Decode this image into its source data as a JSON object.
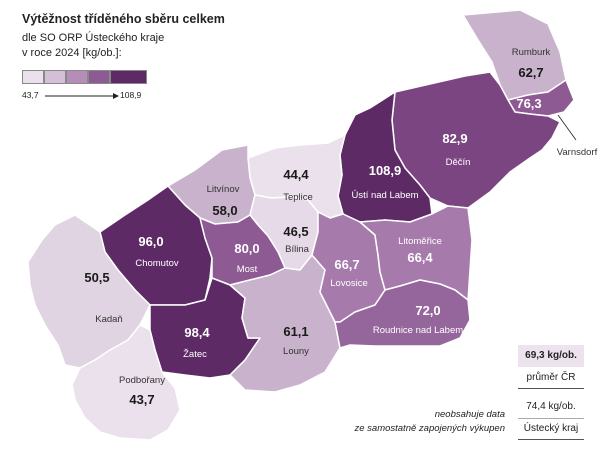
{
  "header": {
    "title": "Výtěžnost tříděného sběru celkem",
    "subtitle_1": "dle SO ORP Ústeckého kraje",
    "subtitle_2": "v roce 2024 [kg/ob.]:"
  },
  "legend": {
    "min": "43,7",
    "max": "108,9",
    "colors": [
      "#ebe1ec",
      "#d4bfd6",
      "#b58eb8",
      "#8e5a94",
      "#5e2a66"
    ]
  },
  "regions": [
    {
      "id": "rumburk",
      "name": "Rumburk",
      "value": "62,7",
      "color": "#c9b2cc"
    },
    {
      "id": "varnsdorf",
      "name": "Varnsdorf",
      "value": "76,3",
      "color": "#8e5a94"
    },
    {
      "id": "decin",
      "name": "Děčín",
      "value": "82,9",
      "color": "#7b4582"
    },
    {
      "id": "usti",
      "name": "Ústí nad Labem",
      "value": "108,9",
      "color": "#5e2a66"
    },
    {
      "id": "teplice",
      "name": "Teplice",
      "value": "44,4",
      "color": "#ebe1ec"
    },
    {
      "id": "litvinov",
      "name": "Litvínov",
      "value": "58,0",
      "color": "#c9b2cc"
    },
    {
      "id": "bilina",
      "name": "Bílina",
      "value": "46,5",
      "color": "#e6dae8"
    },
    {
      "id": "chomutov",
      "name": "Chomutov",
      "value": "96,0",
      "color": "#5e2a66"
    },
    {
      "id": "most",
      "name": "Most",
      "value": "80,0",
      "color": "#8e5a94"
    },
    {
      "id": "kadan",
      "name": "Kadaň",
      "value": "50,5",
      "color": "#e0d3e2"
    },
    {
      "id": "zatec",
      "name": "Žatec",
      "value": "98,4",
      "color": "#5e2a66"
    },
    {
      "id": "podborany",
      "name": "Podbořany",
      "value": "43,7",
      "color": "#ebe1ec"
    },
    {
      "id": "louny",
      "name": "Louny",
      "value": "61,1",
      "color": "#c9b2cc"
    },
    {
      "id": "lovosice",
      "name": "Lovosice",
      "value": "66,7",
      "color": "#a67aab"
    },
    {
      "id": "litomerice",
      "name": "Litoměřice",
      "value": "66,4",
      "color": "#a67aab"
    },
    {
      "id": "roudnice",
      "name": "Roudnice nad Labem",
      "value": "72,0",
      "color": "#95669b"
    }
  ],
  "averages": {
    "cr_value": "69,3 kg/ob.",
    "cr_label": "průměr ČR",
    "kraj_value": "74,4 kg/ob.",
    "kraj_label": "Ústecký kraj"
  },
  "note": {
    "line_1": "neobsahuje data",
    "line_2": "ze samostatně zapojených výkupen"
  }
}
